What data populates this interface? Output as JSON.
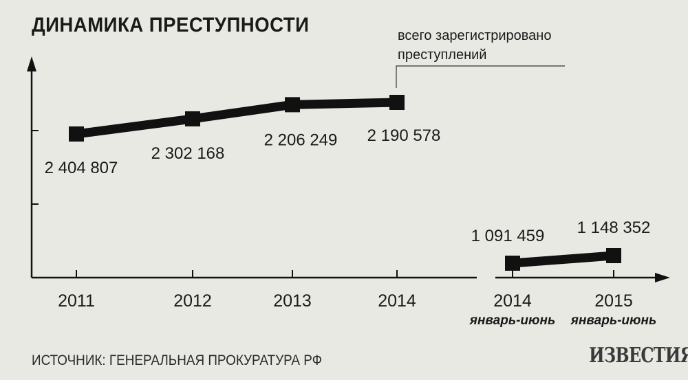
{
  "title": "ДИНАМИКА ПРЕСТУПНОСТИ",
  "source": "ИСТОЧНИК: ГЕНЕРАЛЬНАЯ ПРОКУРАТУРА РФ",
  "logo": "ИЗВЕСТИЯ",
  "colors": {
    "background": "#e9e9e4",
    "ink": "#111111"
  },
  "chart_data": [
    {
      "type": "line",
      "legend": [
        "всего зарегистрировано",
        "преступлений"
      ],
      "grid": false,
      "series": [
        {
          "x": [
            "2011",
            "2012",
            "2013",
            "2014"
          ],
          "values": [
            2404807,
            2302168,
            2206249,
            2190578
          ],
          "labels": [
            "2 404 807",
            "2 302 168",
            "2 206 249",
            "2 190 578"
          ]
        }
      ]
    },
    {
      "type": "line",
      "grid": false,
      "series": [
        {
          "x": [
            "2014",
            "2015"
          ],
          "x_sub": [
            "январь-июнь",
            "январь-июнь"
          ],
          "values": [
            1091459,
            1148352
          ],
          "labels": [
            "1 091 459",
            "1 148 352"
          ]
        }
      ]
    }
  ]
}
